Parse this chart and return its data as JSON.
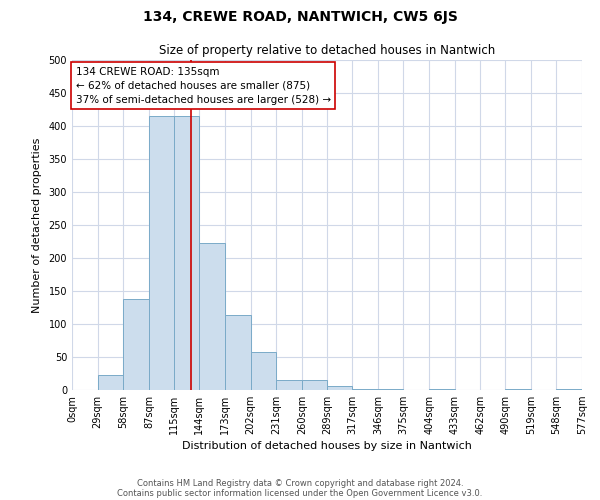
{
  "title": "134, CREWE ROAD, NANTWICH, CW5 6JS",
  "subtitle": "Size of property relative to detached houses in Nantwich",
  "xlabel": "Distribution of detached houses by size in Nantwich",
  "ylabel": "Number of detached properties",
  "bin_edges": [
    0,
    29,
    58,
    87,
    115,
    144,
    173,
    202,
    231,
    260,
    289,
    317,
    346,
    375,
    404,
    433,
    462,
    490,
    519,
    548,
    577
  ],
  "bin_labels": [
    "0sqm",
    "29sqm",
    "58sqm",
    "87sqm",
    "115sqm",
    "144sqm",
    "173sqm",
    "202sqm",
    "231sqm",
    "260sqm",
    "289sqm",
    "317sqm",
    "346sqm",
    "375sqm",
    "404sqm",
    "433sqm",
    "462sqm",
    "490sqm",
    "519sqm",
    "548sqm",
    "577sqm"
  ],
  "counts": [
    0,
    22,
    138,
    415,
    415,
    222,
    113,
    57,
    15,
    15,
    6,
    1,
    1,
    0,
    1,
    0,
    0,
    1,
    0,
    1
  ],
  "bar_color": "#ccdded",
  "bar_edge_color": "#7aaac8",
  "property_line_x": 135,
  "property_line_color": "#cc0000",
  "annotation_line1": "134 CREWE ROAD: 135sqm",
  "annotation_line2": "← 62% of detached houses are smaller (875)",
  "annotation_line3": "37% of semi-detached houses are larger (528) →",
  "annotation_box_color": "#ffffff",
  "annotation_box_edge_color": "#cc0000",
  "ylim": [
    0,
    500
  ],
  "yticks": [
    0,
    50,
    100,
    150,
    200,
    250,
    300,
    350,
    400,
    450,
    500
  ],
  "footer_line1": "Contains HM Land Registry data © Crown copyright and database right 2024.",
  "footer_line2": "Contains public sector information licensed under the Open Government Licence v3.0.",
  "background_color": "#ffffff",
  "grid_color": "#d0d8e8",
  "title_fontsize": 10,
  "subtitle_fontsize": 8.5,
  "axis_label_fontsize": 8,
  "tick_fontsize": 7,
  "annotation_fontsize": 7.5,
  "footer_fontsize": 6
}
